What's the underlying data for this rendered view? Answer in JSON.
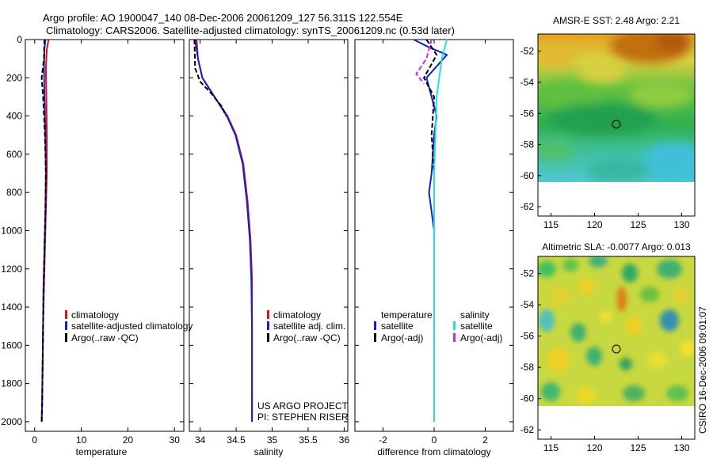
{
  "header": {
    "line1": "Argo profile: AO 1900047_140 08-Dec-2006 20061209_127 56.311S 122.554E",
    "line2": "Climatology: CARS2006. Satellite-adjusted climatology: synTS_20061209.nc (0.53d later)"
  },
  "credits": {
    "project": "US ARGO PROJECT",
    "pi": "PI: STEPHEN RISER",
    "stamp": "CSIRO 16-Dec-2006 09:01:07"
  },
  "colors": {
    "climatology": "#e01010",
    "satellite": "#1020d0",
    "argo": "#000000",
    "salinity_satellite": "#20e0e0",
    "salinity_argo": "#e020e0",
    "marker": "#000000"
  },
  "chart_data": [
    {
      "type": "line",
      "title": "",
      "xlabel": "temperature",
      "ylabel": "",
      "xlim": [
        -2,
        32
      ],
      "ylim": [
        2050,
        0
      ],
      "xticks": [
        0,
        10,
        20,
        30
      ],
      "yticks": [
        0,
        200,
        400,
        600,
        800,
        1000,
        1200,
        1400,
        1600,
        1800,
        2000
      ],
      "legend": [
        "climatology",
        "satellite-adjusted climatology",
        "Argo(..raw -QC)"
      ],
      "series": [
        {
          "name": "climatology",
          "color": "climatology",
          "dash": "solid",
          "x": [
            3.0,
            2.6,
            2.4,
            2.5,
            2.6,
            2.6,
            2.4,
            2.2,
            2.0,
            1.8,
            1.7,
            1.6,
            1.5
          ],
          "y": [
            0,
            50,
            150,
            300,
            500,
            700,
            900,
            1100,
            1300,
            1500,
            1700,
            1900,
            2000
          ]
        },
        {
          "name": "satellite-adjusted climatology",
          "color": "satellite",
          "dash": "solid",
          "x": [
            2.3,
            2.1,
            2.0,
            2.1,
            2.3,
            2.4,
            2.3,
            2.1,
            1.9,
            1.8,
            1.7,
            1.6,
            1.5
          ],
          "y": [
            0,
            50,
            150,
            300,
            500,
            700,
            900,
            1100,
            1300,
            1500,
            1700,
            1900,
            2000
          ]
        },
        {
          "name": "Argo(..raw -QC)",
          "color": "argo",
          "dash": "dash",
          "x": [
            2.1,
            2.0,
            1.5,
            1.8,
            2.2,
            2.4,
            2.3,
            2.1,
            1.9,
            1.8,
            1.7,
            1.6,
            1.5
          ],
          "y": [
            0,
            100,
            200,
            300,
            500,
            700,
            900,
            1100,
            1300,
            1500,
            1700,
            1900,
            2000
          ]
        }
      ]
    },
    {
      "type": "line",
      "title": "",
      "xlabel": "salinity",
      "ylabel": "",
      "xlim": [
        33.85,
        36.05
      ],
      "ylim": [
        2050,
        0
      ],
      "xticks": [
        34,
        34.5,
        35,
        35.5,
        36
      ],
      "xtick_labels": [
        "34",
        "34.5",
        "35",
        "35.5",
        "36"
      ],
      "legend": [
        "climatology",
        "satellite adj. clim.",
        "Argo(..raw -QC)"
      ],
      "series": [
        {
          "name": "climatology",
          "color": "climatology",
          "dash": "solid",
          "x": [
            33.95,
            33.97,
            34.03,
            34.2,
            34.38,
            34.5,
            34.6,
            34.66,
            34.7,
            34.72,
            34.72,
            34.72,
            34.72
          ],
          "y": [
            0,
            100,
            200,
            300,
            400,
            500,
            650,
            850,
            1050,
            1250,
            1500,
            1800,
            2000
          ]
        },
        {
          "name": "satellite adj. clim.",
          "color": "satellite",
          "dash": "solid",
          "x": [
            33.93,
            33.97,
            34.03,
            34.2,
            34.37,
            34.49,
            34.59,
            34.65,
            34.69,
            34.71,
            34.72,
            34.72,
            34.72
          ],
          "y": [
            0,
            100,
            200,
            300,
            400,
            500,
            650,
            850,
            1050,
            1250,
            1500,
            1800,
            2000
          ]
        },
        {
          "name": "Argo(..raw -QC)",
          "color": "argo",
          "dash": "dash",
          "x": [
            33.92,
            33.93,
            34.0,
            34.15,
            34.3,
            34.36
          ],
          "y": [
            0,
            150,
            220,
            280,
            350,
            400
          ]
        }
      ]
    },
    {
      "type": "line",
      "title": "",
      "xlabel": "difference from climatology",
      "ylabel": "",
      "xlim": [
        -3.1,
        3.1
      ],
      "ylim": [
        2050,
        0
      ],
      "xticks": [
        -2,
        0,
        2
      ],
      "legend": [
        "temperature",
        "satellite",
        "Argo(-adj)",
        "salinity",
        "satellite",
        "Argo(-adj)"
      ],
      "series": [
        {
          "name": "temperature satellite",
          "color": "satellite",
          "dash": "solid",
          "x": [
            -0.8,
            -0.2,
            0.5,
            -0.3,
            -0.1,
            0.1,
            0.0,
            -0.1,
            -0.2,
            0.0,
            0.0,
            0.0
          ],
          "y": [
            0,
            40,
            80,
            200,
            300,
            400,
            500,
            700,
            800,
            1000,
            1500,
            2000
          ]
        },
        {
          "name": "temperature Argo(-adj)",
          "color": "argo",
          "dash": "dash",
          "x": [
            -0.3,
            0.1,
            -0.4,
            0.0,
            -0.1,
            0.0,
            0.0,
            0.0,
            0.0,
            0.0
          ],
          "y": [
            0,
            80,
            200,
            300,
            500,
            700,
            900,
            1050,
            1500,
            2000
          ]
        },
        {
          "name": "salinity satellite",
          "color": "salinity_satellite",
          "dash": "solid",
          "x": [
            0.5,
            0.3,
            0.1,
            0.05,
            0.0,
            0.0,
            0.0,
            0.0,
            0.0
          ],
          "y": [
            0,
            100,
            300,
            500,
            700,
            1000,
            1500,
            1800,
            2000
          ]
        },
        {
          "name": "salinity Argo(-adj)",
          "color": "salinity_argo",
          "dash": "dash",
          "x": [
            -0.1,
            -0.3,
            -0.7,
            -0.4
          ],
          "y": [
            0,
            100,
            180,
            230
          ]
        }
      ]
    },
    {
      "type": "heatmap",
      "title": "AMSR-E SST: 2.48 Argo: 2.21",
      "xlim": [
        113.5,
        131.5
      ],
      "ylim": [
        -62.6,
        -50.9
      ],
      "xticks": [
        115,
        120,
        125,
        130
      ],
      "yticks": [
        -52,
        -54,
        -56,
        -58,
        -60,
        -62
      ],
      "ytick_labels": [
        "-52",
        "-54",
        "-56",
        "-58",
        "-60",
        "-62"
      ],
      "data_extent_lat": [
        -60,
        -50.9
      ],
      "marker": {
        "lon": 122.554,
        "lat": -56.311
      }
    },
    {
      "type": "heatmap",
      "title": "Altimetric SLA: -0.0077 Argo: 0.013",
      "xlim": [
        113.5,
        131.5
      ],
      "ylim": [
        -62.6,
        -50.9
      ],
      "xticks": [
        115,
        120,
        125,
        130
      ],
      "yticks": [
        -52,
        -54,
        -56,
        -58,
        -60,
        -62
      ],
      "ytick_labels": [
        "-52",
        "-54",
        "-56",
        "-58",
        "-60",
        "-62"
      ],
      "data_extent_lat": [
        -60,
        -50.9
      ],
      "marker": {
        "lon": 122.554,
        "lat": -56.311
      }
    }
  ]
}
